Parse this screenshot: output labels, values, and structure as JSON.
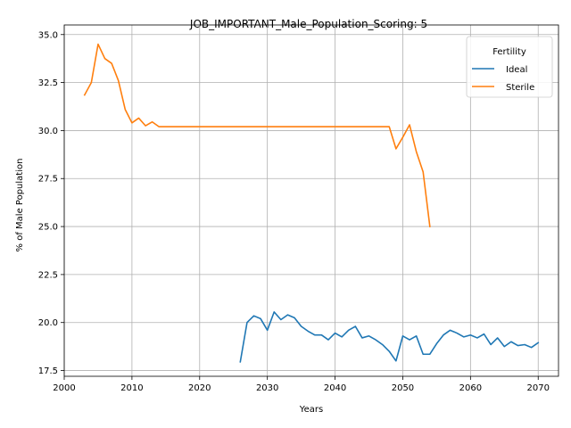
{
  "chart_data": {
    "type": "line",
    "title": "JOB_IMPORTANT_Male_Population_Scoring: 5",
    "xlabel": "Years",
    "ylabel": "% of Male Population",
    "xlim": [
      2000,
      2073
    ],
    "ylim": [
      17.2,
      35.5
    ],
    "xticks": [
      2000,
      2010,
      2020,
      2030,
      2040,
      2050,
      2060,
      2070
    ],
    "yticks": [
      17.5,
      20.0,
      22.5,
      25.0,
      27.5,
      30.0,
      32.5,
      35.0
    ],
    "xtick_labels": [
      "2000",
      "2010",
      "2020",
      "2030",
      "2040",
      "2050",
      "2060",
      "2070"
    ],
    "ytick_labels": [
      "17.5",
      "20.0",
      "22.5",
      "25.0",
      "27.5",
      "30.0",
      "32.5",
      "35.0"
    ],
    "grid": true,
    "legend": {
      "title": "Fertility",
      "placement": "top-right"
    },
    "series": [
      {
        "name": "Ideal",
        "color": "#1f77b4",
        "x": [
          2026,
          2027,
          2028,
          2029,
          2030,
          2031,
          2032,
          2033,
          2034,
          2035,
          2036,
          2037,
          2038,
          2039,
          2040,
          2041,
          2042,
          2043,
          2044,
          2045,
          2046,
          2047,
          2048,
          2049,
          2050,
          2051,
          2052,
          2053,
          2054,
          2055,
          2056,
          2057,
          2058,
          2059,
          2060,
          2061,
          2062,
          2063,
          2064,
          2065,
          2066,
          2067,
          2068,
          2069,
          2070
        ],
        "y": [
          17.95,
          20.0,
          20.35,
          20.2,
          19.6,
          20.55,
          20.15,
          20.4,
          20.25,
          19.8,
          19.55,
          19.35,
          19.35,
          19.1,
          19.45,
          19.25,
          19.6,
          19.8,
          19.2,
          19.3,
          19.1,
          18.85,
          18.5,
          18.0,
          19.3,
          19.1,
          19.3,
          18.35,
          18.35,
          18.9,
          19.35,
          19.6,
          19.45,
          19.25,
          19.35,
          19.2,
          19.4,
          18.85,
          19.2,
          18.75,
          19.0,
          18.8,
          18.85,
          18.7,
          18.95
        ]
      },
      {
        "name": "Sterile",
        "color": "#ff7f0e",
        "x": [
          2003,
          2004,
          2005,
          2006,
          2007,
          2008,
          2009,
          2010,
          2011,
          2012,
          2013,
          2014,
          2015,
          2016,
          2017,
          2018,
          2019,
          2020,
          2021,
          2022,
          2023,
          2024,
          2025,
          2026,
          2027,
          2028,
          2029,
          2030,
          2031,
          2032,
          2033,
          2034,
          2035,
          2036,
          2037,
          2038,
          2039,
          2040,
          2041,
          2042,
          2043,
          2044,
          2045,
          2046,
          2047,
          2048,
          2049,
          2050,
          2051,
          2052,
          2053,
          2054
        ],
        "y": [
          31.85,
          32.5,
          34.5,
          33.75,
          33.5,
          32.6,
          31.1,
          30.4,
          30.65,
          30.25,
          30.45,
          30.2,
          30.2,
          30.2,
          30.2,
          30.2,
          30.2,
          30.2,
          30.2,
          30.2,
          30.2,
          30.2,
          30.2,
          30.2,
          30.2,
          30.2,
          30.2,
          30.2,
          30.2,
          30.2,
          30.2,
          30.2,
          30.2,
          30.2,
          30.2,
          30.2,
          30.2,
          30.2,
          30.2,
          30.2,
          30.2,
          30.2,
          30.2,
          30.2,
          30.2,
          30.2,
          29.05,
          29.65,
          30.3,
          28.9,
          27.85,
          25.0
        ]
      }
    ]
  }
}
